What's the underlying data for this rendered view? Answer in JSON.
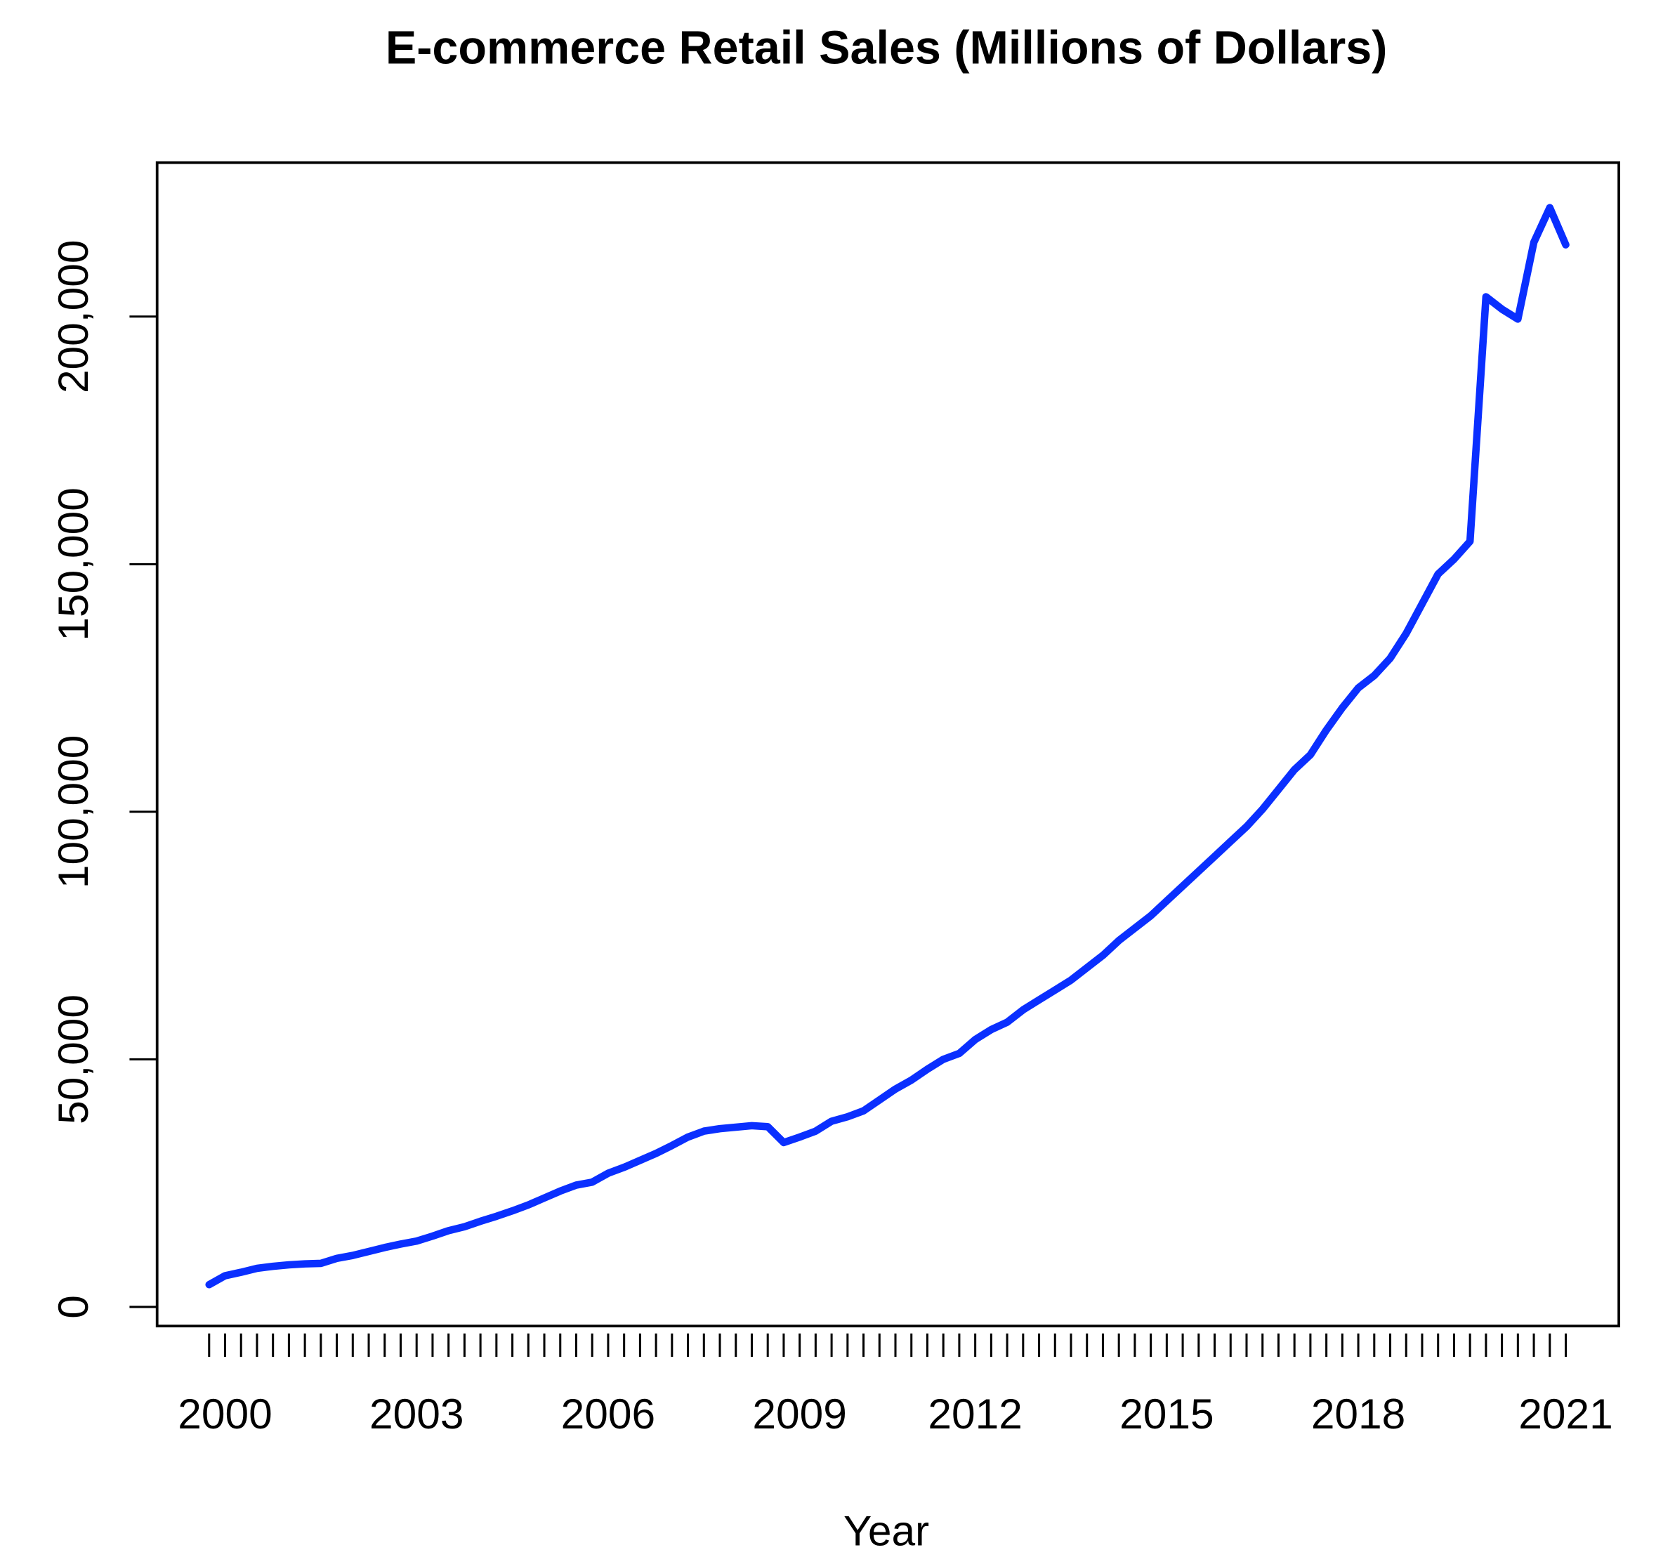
{
  "chart_data": {
    "type": "line",
    "title": "E-commerce Retail Sales (Millions of Dollars)",
    "x_label": "Year",
    "categories": [
      null,
      "2000",
      null,
      null,
      null,
      null,
      null,
      null,
      null,
      null,
      null,
      null,
      null,
      "2003",
      null,
      null,
      null,
      null,
      null,
      null,
      null,
      null,
      null,
      null,
      null,
      "2006",
      null,
      null,
      null,
      null,
      null,
      null,
      null,
      null,
      null,
      null,
      null,
      "2009",
      null,
      null,
      null,
      null,
      null,
      null,
      null,
      null,
      null,
      null,
      "2012",
      null,
      null,
      null,
      null,
      null,
      null,
      null,
      null,
      null,
      null,
      null,
      "2015",
      null,
      null,
      null,
      null,
      null,
      null,
      null,
      null,
      null,
      null,
      null,
      "2018",
      null,
      null,
      null,
      null,
      null,
      null,
      null,
      null,
      null,
      null,
      null,
      null,
      "2021"
    ],
    "series": [
      {
        "name": "E-commerce Retail Sales",
        "color": "#0a2fff",
        "values": [
          4500,
          6300,
          7000,
          7800,
          8200,
          8500,
          8700,
          8800,
          9800,
          10400,
          11200,
          12000,
          12700,
          13300,
          14300,
          15400,
          16200,
          17300,
          18300,
          19400,
          20600,
          22000,
          23400,
          24600,
          25200,
          27000,
          28200,
          29600,
          31000,
          32600,
          34300,
          35500,
          36000,
          36300,
          36600,
          36400,
          33200,
          34300,
          35500,
          37500,
          38400,
          39600,
          41800,
          44000,
          45800,
          48000,
          50000,
          51200,
          54000,
          56000,
          57500,
          60000,
          62000,
          64000,
          66000,
          68500,
          71000,
          74000,
          76500,
          79000,
          82000,
          85000,
          88000,
          91000,
          94000,
          97000,
          100500,
          104500,
          108500,
          111500,
          116500,
          121000,
          125000,
          127500,
          131000,
          136000,
          142000,
          148000,
          151000,
          154600,
          204000,
          201500,
          199500,
          215000,
          222000,
          214500
        ]
      }
    ],
    "ylim": [
      -3860,
      231100
    ],
    "yticks": [
      0,
      {
        "value": 50000,
        "label": "50,000"
      },
      {
        "value": 100000,
        "label": "100,000"
      },
      {
        "value": 150000,
        "label": "150,000"
      },
      {
        "value": 200000,
        "label": "200,000"
      }
    ],
    "grid": false
  }
}
